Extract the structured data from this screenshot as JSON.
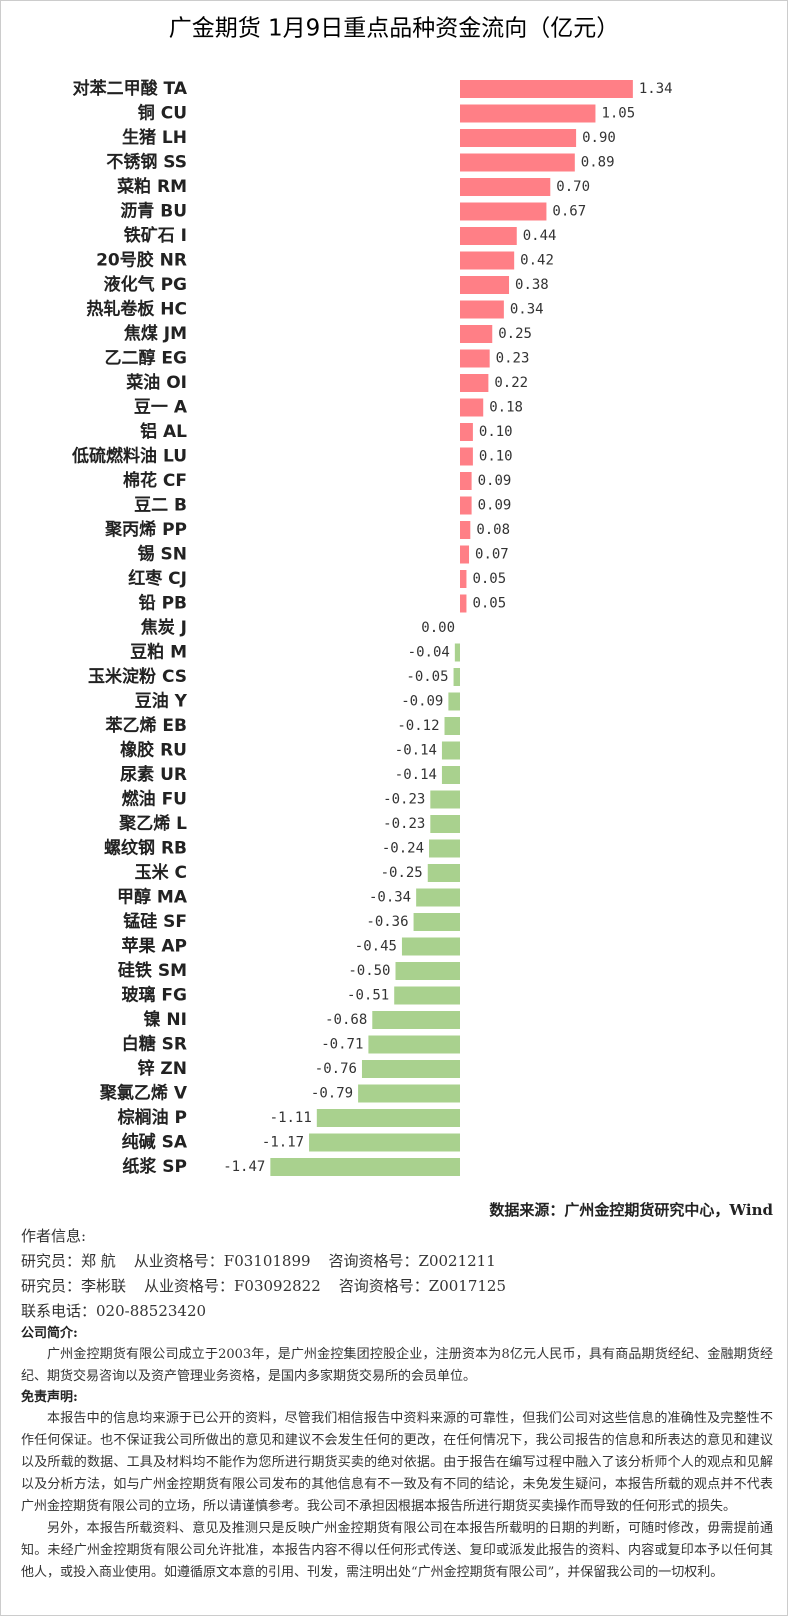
{
  "chart_data": {
    "type": "hbar",
    "title": "广金期货 1月9日重点品种资金流向（亿元）",
    "categories": [
      "对苯二甲酸 TA",
      "铜 CU",
      "生猪 LH",
      "不锈钢 SS",
      "菜粕 RM",
      "沥青 BU",
      "铁矿石 I",
      "20号胶 NR",
      "液化气 PG",
      "热轧卷板 HC",
      "焦煤 JM",
      "乙二醇 EG",
      "菜油 OI",
      "豆一 A",
      "铝 AL",
      "低硫燃料油 LU",
      "棉花 CF",
      "豆二 B",
      "聚丙烯 PP",
      "锡 SN",
      "红枣 CJ",
      "铅 PB",
      "焦炭 J",
      "豆粕 M",
      "玉米淀粉 CS",
      "豆油 Y",
      "苯乙烯 EB",
      "橡胶 RU",
      "尿素 UR",
      "燃油 FU",
      "聚乙烯 L",
      "螺纹钢 RB",
      "玉米 C",
      "甲醇 MA",
      "锰硅 SF",
      "苹果 AP",
      "硅铁 SM",
      "玻璃 FG",
      "镍 NI",
      "白糖 SR",
      "锌 ZN",
      "聚氯乙烯 V",
      "棕榈油 P",
      "纯碱 SA",
      "纸浆 SP"
    ],
    "values": [
      1.34,
      1.05,
      0.9,
      0.89,
      0.7,
      0.67,
      0.44,
      0.42,
      0.38,
      0.34,
      0.25,
      0.23,
      0.22,
      0.18,
      0.1,
      0.1,
      0.09,
      0.09,
      0.08,
      0.07,
      0.05,
      0.05,
      0,
      -0.04,
      -0.05,
      -0.09,
      -0.12,
      -0.14,
      -0.14,
      -0.23,
      -0.23,
      -0.24,
      -0.25,
      -0.34,
      -0.36,
      -0.45,
      -0.5,
      -0.51,
      -0.68,
      -0.71,
      -0.76,
      -0.79,
      -1.11,
      -1.17,
      -1.47
    ],
    "value_labels": [
      "1.34",
      "1.05",
      "0.90",
      "0.89",
      "0.70",
      "0.67",
      "0.44",
      "0.42",
      "0.38",
      "0.34",
      "0.25",
      "0.23",
      "0.22",
      "0.18",
      "0.10",
      "0.10",
      "0.09",
      "0.09",
      "0.08",
      "0.07",
      "0.05",
      "0.05",
      "0.00",
      "-0.04",
      "-0.05",
      "-0.09",
      "-0.12",
      "-0.14",
      "-0.14",
      "-0.23",
      "-0.23",
      "-0.24",
      "-0.25",
      "-0.34",
      "-0.36",
      "-0.45",
      "-0.50",
      "-0.51",
      "-0.68",
      "-0.71",
      "-0.76",
      "-0.79",
      "-1.11",
      "-1.17",
      "-1.47"
    ],
    "color": "#ff7f86",
    "negative_color": "#a9d18e"
  },
  "footer": {
    "source": "数据来源：广州金控期货研究中心，Wind",
    "author_heading": "作者信息:",
    "researchers": [
      [
        "研究员：郑 航",
        "从业资格号：F03101899",
        "咨询资格号：Z0021211"
      ],
      [
        "研究员：李彬联",
        "从业资格号：F03092822",
        "咨询资格号：Z0017125"
      ]
    ],
    "phone": "联系电话：020-88523420",
    "company_heading": "公司简介:",
    "company": "广州金控期货有限公司成立于2003年，是广州金控集团控股企业，注册资本为8亿元人民币，具有商品期货经纪、金融期货经纪、期货交易咨询以及资产管理业务资格，是国内多家期货交易所的会员单位。",
    "disclaimer_heading": "免责声明:",
    "disclaimer": [
      "本报告中的信息均来源于已公开的资料，尽管我们相信报告中资料来源的可靠性，但我们公司对这些信息的准确性及完整性不作任何保证。也不保证我公司所做出的意见和建议不会发生任何的更改，在任何情况下，我公司报告的信息和所表达的意见和建议以及所载的数据、工具及材料均不能作为您所进行期货买卖的绝对依据。由于报告在编写过程中融入了该分析师个人的观点和见解以及分析方法，如与广州金控期货有限公司发布的其他信息有不一致及有不同的结论，未免发生疑问，本报告所载的观点并不代表广州金控期货有限公司的立场，所以请谨慎参考。我公司不承担因根据本报告所进行期货买卖操作而导致的任何形式的损失。",
      "另外，本报告所载资料、意见及推测只是反映广州金控期货有限公司在本报告所载明的日期的判断，可随时修改，毋需提前通知。未经广州金控期货有限公司允许批准，本报告内容不得以任何形式传送、复印或派发此报告的资料、内容或复印本予以任何其他人，或投入商业使用。如遵循原文本意的引用、刊发，需注明出处“广州金控期货有限公司”，并保留我公司的一切权利。"
    ]
  }
}
